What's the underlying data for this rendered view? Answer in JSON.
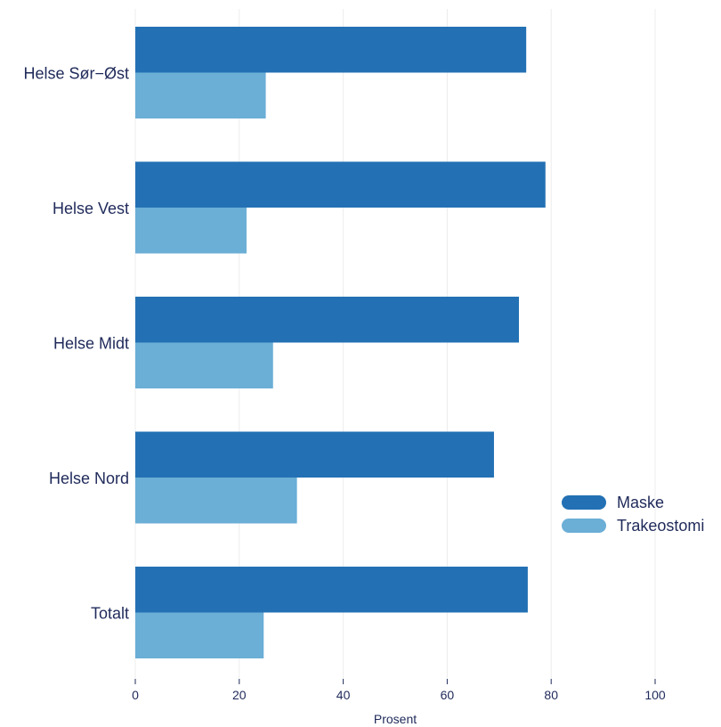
{
  "chart_data": {
    "type": "bar",
    "orientation": "horizontal",
    "categories": [
      "Helse Sør−Øst",
      "Helse Vest",
      "Helse Midt",
      "Helse Nord",
      "Totalt"
    ],
    "series": [
      {
        "name": "Maske",
        "values": [
          75.2,
          78.9,
          73.8,
          69.0,
          75.5
        ]
      },
      {
        "name": "Trakeostomi",
        "values": [
          25.1,
          21.4,
          26.5,
          31.1,
          24.7
        ]
      }
    ],
    "xlabel": "Prosent",
    "ylabel": "",
    "xlim": [
      0,
      100
    ],
    "xticks": [
      0,
      20,
      40,
      60,
      80,
      100
    ],
    "grid": true,
    "legend_position": "right",
    "colors": {
      "Maske": "#2371b4",
      "Trakeostomi": "#6baed6"
    }
  }
}
